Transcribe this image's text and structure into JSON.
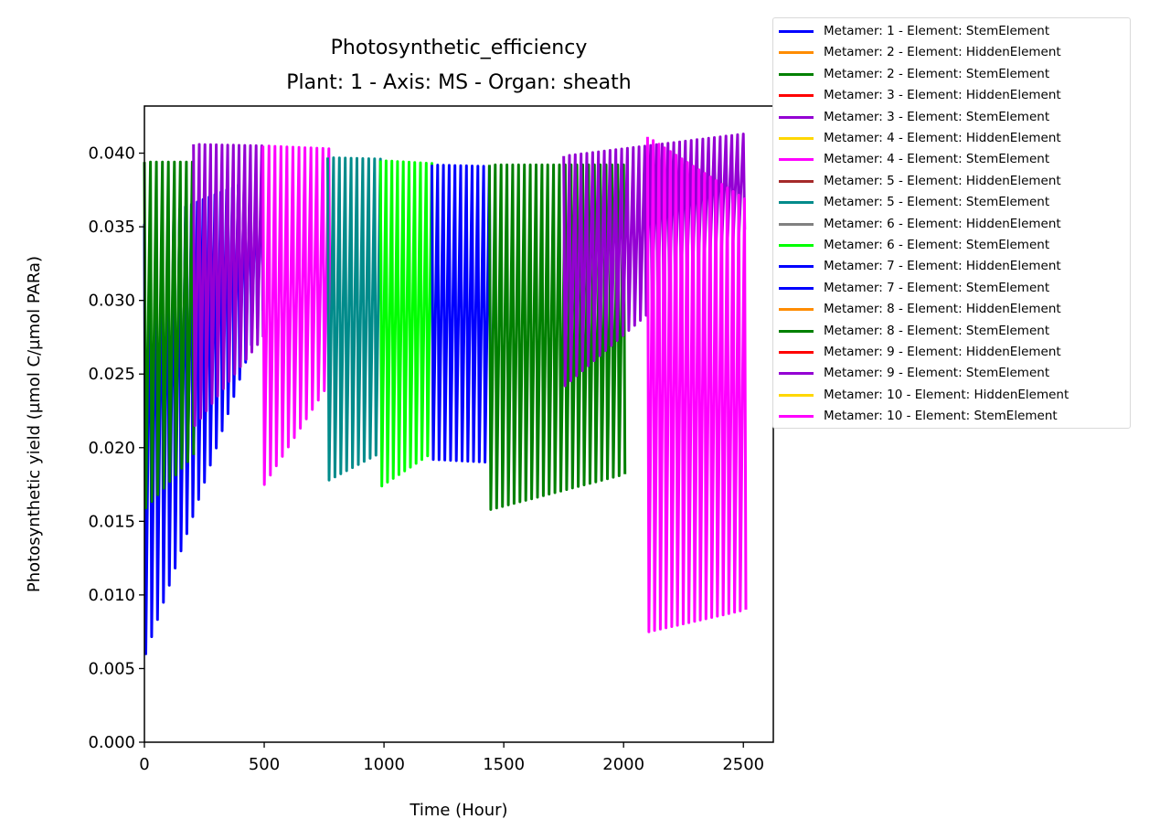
{
  "chart_data": {
    "type": "line",
    "title": "Photosynthetic_efficiency",
    "subtitle": "Plant: 1 - Axis: MS - Organ: sheath",
    "xlabel": "Time (Hour)",
    "ylabel": "Photosynthetic yield (µmol C/µmol PARa)",
    "xlim": [
      0,
      2625
    ],
    "ylim": [
      0,
      0.0432
    ],
    "xticks": [
      "0",
      "500",
      "1000",
      "1500",
      "2000",
      "2500"
    ],
    "yticks": [
      "0.000",
      "0.005",
      "0.010",
      "0.015",
      "0.020",
      "0.025",
      "0.030",
      "0.035",
      "0.040"
    ],
    "grid": false,
    "legend_position": "outside-right",
    "series": [
      {
        "name": "Metamer: 1 - Element: StemElement",
        "color": "#0000ff",
        "x_range": [
          0,
          490
        ],
        "max_env": [
          [
            0,
            0.0352
          ],
          [
            490,
            0.0385
          ]
        ],
        "min_env": [
          [
            0,
            0.006
          ],
          [
            490,
            0.0293
          ]
        ]
      },
      {
        "name": "Metamer: 2 - Element: HiddenElement",
        "color": "#ff8c00",
        "x_range": [],
        "max_env": [],
        "min_env": []
      },
      {
        "name": "Metamer: 2 - Element: StemElement",
        "color": "#008000",
        "x_range": [
          0,
          200
        ],
        "max_env": [
          [
            0,
            0.0394
          ],
          [
            200,
            0.0394
          ]
        ],
        "min_env": [
          [
            0,
            0.0159
          ],
          [
            200,
            0.0195
          ]
        ]
      },
      {
        "name": "Metamer: 3 - Element: HiddenElement",
        "color": "#ff0000",
        "x_range": [],
        "max_env": [],
        "min_env": []
      },
      {
        "name": "Metamer: 3 - Element: StemElement",
        "color": "#9400d3",
        "x_range": [
          205,
          490
        ],
        "max_env": [
          [
            205,
            0.0406
          ],
          [
            490,
            0.0405
          ]
        ],
        "min_env": [
          [
            205,
            0.0215
          ],
          [
            490,
            0.0275
          ]
        ]
      },
      {
        "name": "Metamer: 4 - Element: HiddenElement",
        "color": "#ffd700",
        "x_range": [],
        "max_env": [],
        "min_env": []
      },
      {
        "name": "Metamer: 4 - Element: StemElement",
        "color": "#ff00ff",
        "x_range": [
          495,
          770
        ],
        "max_env": [
          [
            495,
            0.0405
          ],
          [
            770,
            0.0403
          ]
        ],
        "min_env": [
          [
            495,
            0.0175
          ],
          [
            770,
            0.0245
          ]
        ]
      },
      {
        "name": "Metamer: 5 - Element: HiddenElement",
        "color": "#a52a2a",
        "x_range": [],
        "max_env": [],
        "min_env": []
      },
      {
        "name": "Metamer: 5 - Element: StemElement",
        "color": "#008b8b",
        "x_range": [
          765,
          985
        ],
        "max_env": [
          [
            765,
            0.0397
          ],
          [
            985,
            0.0396
          ]
        ],
        "min_env": [
          [
            765,
            0.0178
          ],
          [
            985,
            0.0197
          ]
        ]
      },
      {
        "name": "Metamer: 6 - Element: HiddenElement",
        "color": "#808080",
        "x_range": [],
        "max_env": [],
        "min_env": []
      },
      {
        "name": "Metamer: 6 - Element: StemElement",
        "color": "#00ff00",
        "x_range": [
          985,
          1200
        ],
        "max_env": [
          [
            985,
            0.0395
          ],
          [
            1200,
            0.0393
          ]
        ],
        "min_env": [
          [
            985,
            0.0174
          ],
          [
            1200,
            0.0197
          ]
        ]
      },
      {
        "name": "Metamer: 7 - Element: HiddenElement",
        "color": "#0000ff",
        "x_range": [],
        "max_env": [],
        "min_env": []
      },
      {
        "name": "Metamer: 7 - Element: StemElement",
        "color": "#0000ff",
        "x_range": [
          1200,
          1440
        ],
        "max_env": [
          [
            1200,
            0.0392
          ],
          [
            1440,
            0.0391
          ]
        ],
        "min_env": [
          [
            1200,
            0.0192
          ],
          [
            1440,
            0.019
          ]
        ]
      },
      {
        "name": "Metamer: 8 - Element: HiddenElement",
        "color": "#ff8c00",
        "x_range": [],
        "max_env": [],
        "min_env": []
      },
      {
        "name": "Metamer: 8 - Element: StemElement",
        "color": "#008000",
        "x_range": [
          1440,
          2000
        ],
        "max_env": [
          [
            1440,
            0.0392
          ],
          [
            2000,
            0.0392
          ]
        ],
        "min_env": [
          [
            1440,
            0.0158
          ],
          [
            2000,
            0.0182
          ]
        ]
      },
      {
        "name": "Metamer: 9 - Element: HiddenElement",
        "color": "#ff0000",
        "x_range": [],
        "max_env": [],
        "min_env": []
      },
      {
        "name": "Metamer: 9 - Element: StemElement",
        "color": "#9400d3",
        "x_range": [
          1750,
          2500
        ],
        "max_env": [
          [
            1750,
            0.0398
          ],
          [
            2500,
            0.0413
          ]
        ],
        "min_env": [
          [
            1750,
            0.0242
          ],
          [
            2500,
            0.0348
          ]
        ]
      },
      {
        "name": "Metamer: 10 - Element: HiddenElement",
        "color": "#ffd700",
        "x_range": [],
        "max_env": [],
        "min_env": []
      },
      {
        "name": "Metamer: 10 - Element: StemElement",
        "color": "#ff00ff",
        "x_range": [
          2100,
          2505
        ],
        "max_env": [
          [
            2100,
            0.0411
          ],
          [
            2505,
            0.0369
          ]
        ],
        "min_env": [
          [
            2100,
            0.0075
          ],
          [
            2505,
            0.009
          ]
        ]
      }
    ]
  }
}
